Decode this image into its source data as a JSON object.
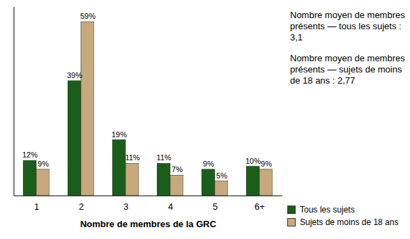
{
  "chart_data": {
    "type": "bar",
    "x_label": "Nombre de membres de la GRC",
    "categories": [
      "1",
      "2",
      "3",
      "4",
      "5",
      "6+"
    ],
    "series": [
      {
        "name": "Tous les sujets",
        "color": "#1b5e1b",
        "values": [
          12,
          39,
          19,
          11,
          9,
          10
        ],
        "value_labels": [
          "12%",
          "39%",
          "19%",
          "11%",
          "9%",
          "10%"
        ]
      },
      {
        "name": "Sujets de moins de 18 ans",
        "color": "#c6a97c",
        "values": [
          9,
          59,
          11,
          7,
          5,
          9
        ],
        "value_labels": [
          "9%",
          "59%",
          "11%",
          "7%",
          "5%",
          "9%"
        ]
      }
    ],
    "ylim": [
      0,
      64
    ],
    "tick_labels": "x",
    "data_labels": true,
    "legend": "bottom-right",
    "annotations": [
      "Nombre moyen de membres présents — tous les sujets : 3,1",
      "Nombre moyen de membres présents — sujets de moins de 18 ans : 2,77"
    ]
  }
}
